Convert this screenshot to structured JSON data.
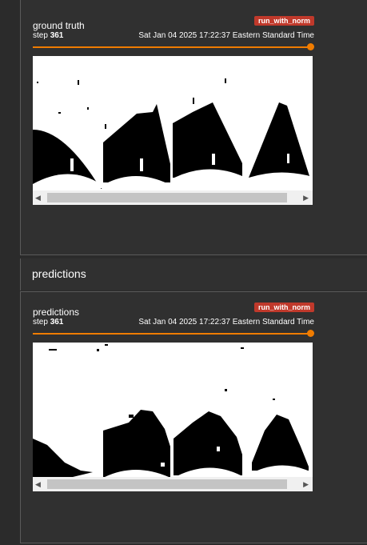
{
  "cards": [
    {
      "title": "ground truth",
      "step_label": "step",
      "step_value": "361",
      "run_tag": "run_with_norm",
      "timestamp": "Sat Jan 04 2025 17:22:37 Eastern Standard Time"
    },
    {
      "title": "predictions",
      "step_label": "step",
      "step_value": "361",
      "run_tag": "run_with_norm",
      "timestamp": "Sat Jan 04 2025 17:22:37 Eastern Standard Time"
    }
  ],
  "section_header": "predictions",
  "colors": {
    "slider": "#f07c00",
    "tag": "#c0392b"
  }
}
